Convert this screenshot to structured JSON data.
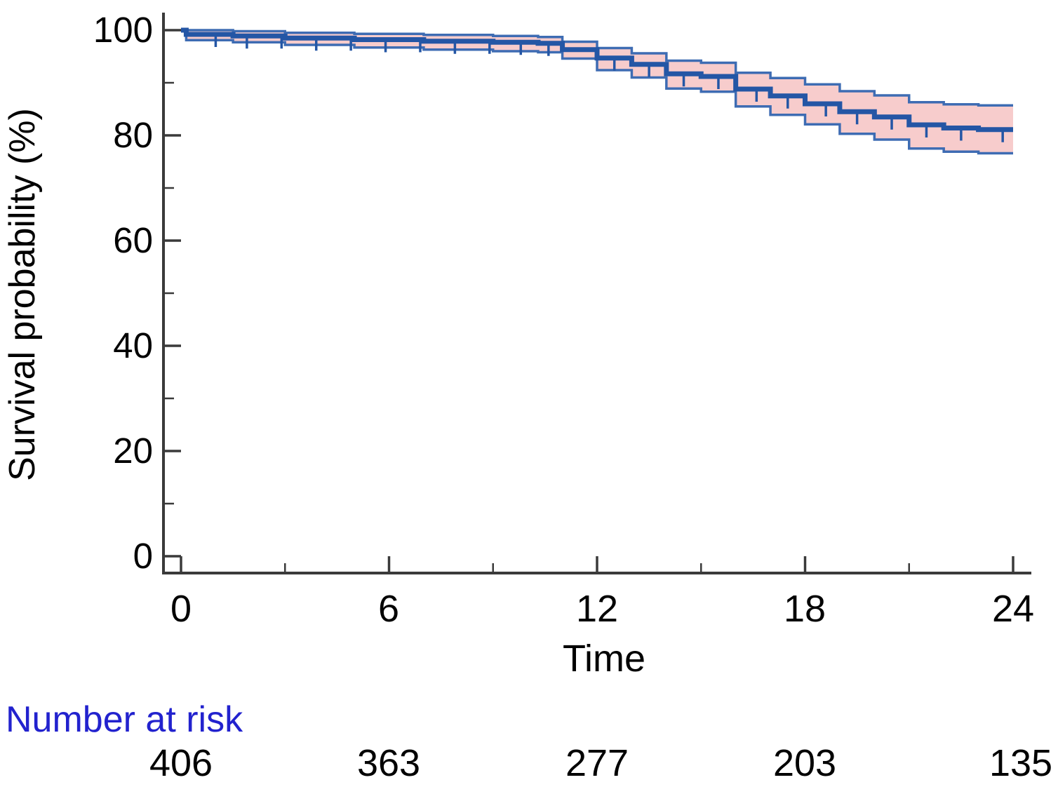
{
  "chart_data": {
    "type": "line",
    "subtype": "kaplan-meier-step-with-confidence-band",
    "title": "",
    "xlabel": "Time",
    "ylabel": "Survival probability (%)",
    "xlim": [
      0,
      24
    ],
    "ylim": [
      0,
      100
    ],
    "grid": "off",
    "legend": "none",
    "x_ticks": [
      0,
      6,
      12,
      18,
      24
    ],
    "x_minor_ticks": [
      3,
      9,
      15,
      21
    ],
    "y_ticks": [
      100,
      80,
      60,
      40,
      20,
      0
    ],
    "y_minor_ticks": [
      90,
      70,
      50,
      30,
      10
    ],
    "step_times": [
      0,
      0.15,
      1.5,
      3,
      5,
      7,
      9,
      10.3,
      11,
      12,
      13,
      14,
      15,
      16,
      17,
      18,
      19,
      20,
      21,
      22,
      23
    ],
    "series": [
      {
        "name": "survival_estimate",
        "values": [
          100,
          99.2,
          98.9,
          98.5,
          98.2,
          97.9,
          97.7,
          97.5,
          96.3,
          94.7,
          93.5,
          91.7,
          91.2,
          88.8,
          87.5,
          86.0,
          84.5,
          83.5,
          82.0,
          81.4,
          81.1
        ]
      },
      {
        "name": "ci_upper",
        "values": [
          100,
          100,
          99.8,
          99.5,
          99.3,
          99.1,
          98.9,
          98.7,
          97.8,
          96.6,
          95.6,
          94.2,
          93.8,
          91.9,
          90.9,
          89.7,
          88.4,
          87.6,
          86.3,
          85.9,
          85.7
        ]
      },
      {
        "name": "ci_lower",
        "values": [
          100,
          98.1,
          97.7,
          97.2,
          96.7,
          96.3,
          96.0,
          95.8,
          94.6,
          92.4,
          91.0,
          88.9,
          88.3,
          85.5,
          83.9,
          82.1,
          80.3,
          79.2,
          77.5,
          76.9,
          76.6
        ]
      }
    ],
    "censor_times": [
      1.0,
      1.9,
      2.9,
      3.9,
      4.9,
      5.9,
      6.9,
      7.9,
      8.9,
      9.8,
      10.6,
      12.5,
      13.5,
      14.5,
      15.5,
      16.6,
      17.5,
      18.6,
      19.5,
      20.5,
      21.5,
      22.5,
      23.7
    ],
    "risk_table": {
      "label": "Number at risk",
      "times": [
        0,
        6,
        12,
        18,
        24
      ],
      "counts": [
        406,
        363,
        277,
        203,
        135
      ]
    },
    "colors": {
      "estimate_line": "#2456a5",
      "ci_edge": "#3e6cb3",
      "ci_fill": "#f7cccc",
      "risk_label_text": "#2222ce",
      "axis": "#3a3a3a",
      "tick_text": "#000000"
    }
  }
}
